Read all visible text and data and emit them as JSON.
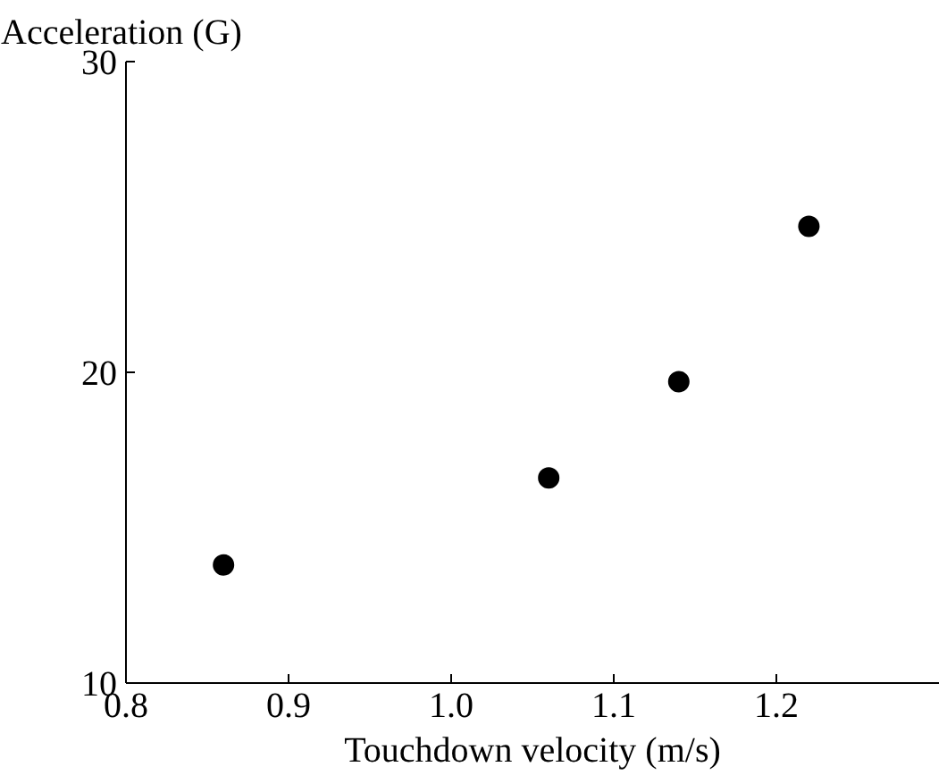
{
  "chart_data": {
    "type": "scatter",
    "xlabel": "Touchdown velocity (m/s)",
    "ylabel": "Acceleration (G)",
    "x": [
      0.86,
      1.06,
      1.14,
      1.22
    ],
    "series": [
      {
        "color": "#000000",
        "values": [
          13.8,
          16.6,
          19.7,
          24.7
        ]
      }
    ],
    "xlim": [
      0.8,
      1.3
    ],
    "ylim": [
      10,
      30
    ],
    "xticks": [
      {
        "value": 0.8,
        "label": "0.8"
      },
      {
        "value": 0.9,
        "label": "0.9"
      },
      {
        "value": 1.0,
        "label": "1.0"
      },
      {
        "value": 1.1,
        "label": "1.1"
      },
      {
        "value": 1.2,
        "label": "1.2"
      }
    ],
    "yticks": [
      10,
      20,
      30
    ],
    "grid": false,
    "marker": "circle"
  }
}
